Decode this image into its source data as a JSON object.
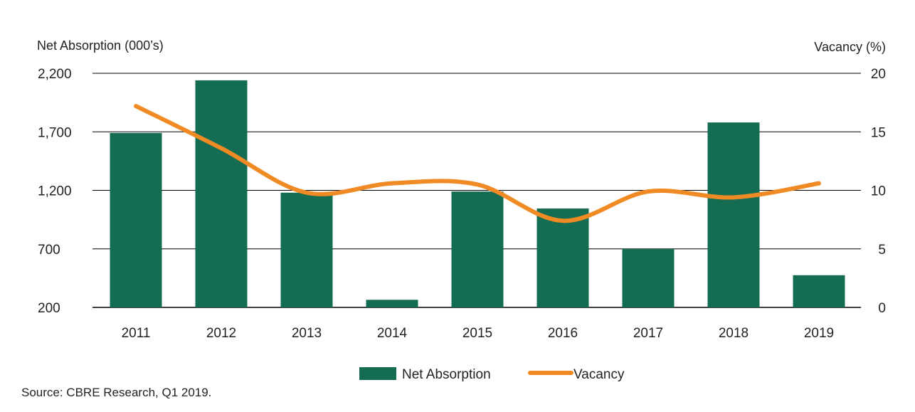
{
  "chart_data": {
    "type": "bar+line",
    "categories": [
      "2011",
      "2012",
      "2013",
      "2014",
      "2015",
      "2016",
      "2017",
      "2018",
      "2019"
    ],
    "series": [
      {
        "name": "Net Absorption",
        "type": "bar",
        "axis": "left",
        "color": "#146c52",
        "values": [
          1690,
          2140,
          1180,
          265,
          1190,
          1045,
          700,
          1780,
          475
        ]
      },
      {
        "name": "Vacancy",
        "type": "line",
        "axis": "right",
        "color": "#f08a24",
        "values": [
          17.2,
          13.6,
          9.8,
          10.6,
          10.5,
          7.4,
          9.9,
          9.4,
          10.6
        ]
      }
    ],
    "ylabel_left": "Net Absorption (000’s)",
    "ylabel_right": "Vacancy (%)",
    "ylim_left": [
      200,
      2200
    ],
    "yticks_left": [
      "2,200",
      "1,700",
      "1,200",
      "700",
      "200"
    ],
    "ytick_values_left": [
      2200,
      1700,
      1200,
      700,
      200
    ],
    "ylim_right": [
      0,
      20
    ],
    "yticks_right": [
      "20",
      "15",
      "10",
      "5",
      "0"
    ],
    "ytick_values_right": [
      20,
      15,
      10,
      5,
      0
    ],
    "grid": true,
    "legend_position": "bottom-center"
  },
  "source": "Source: CBRE Research, Q1 2019."
}
